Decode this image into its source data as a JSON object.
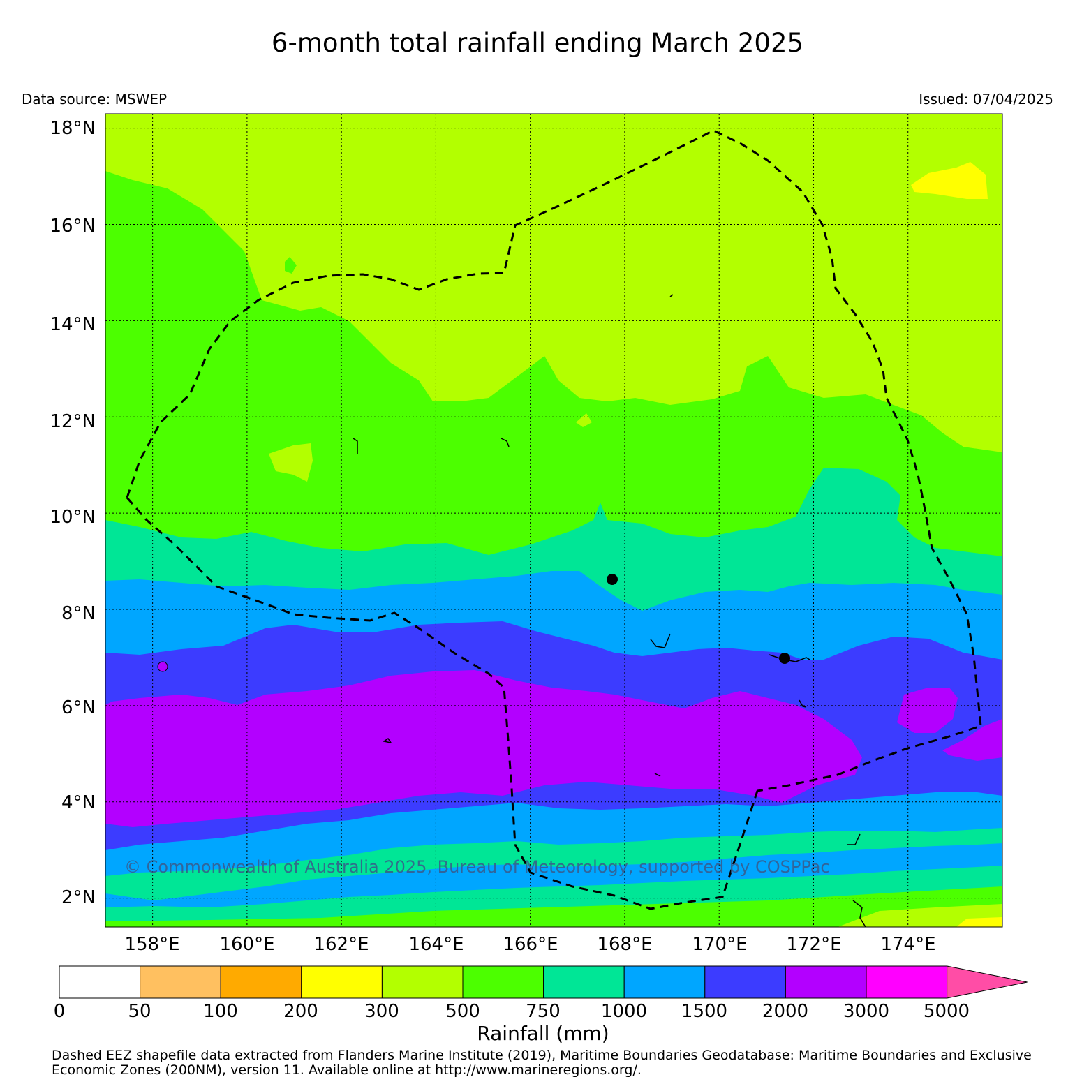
{
  "title": "6-month total rainfall ending March 2025",
  "data_source": "Data source: MSWEP",
  "issued": "Issued: 07/04/2025",
  "copyright": "© Commonwealth of Australia 2025, Bureau of Meteorology, supported by COSPPac",
  "footer": "Dashed EEZ shapefile data extracted from Flanders Marine Institute (2019), Maritime Boundaries Geodatabase: Maritime Boundaries and Exclusive Economic Zones (200NM), version 11. Available online at http://www.marineregions.org/.",
  "map": {
    "lat_ticks": [
      "18°N",
      "16°N",
      "14°N",
      "12°N",
      "10°N",
      "8°N",
      "6°N",
      "4°N",
      "2°N"
    ],
    "lon_ticks": [
      "158°E",
      "160°E",
      "162°E",
      "164°E",
      "166°E",
      "168°E",
      "170°E",
      "172°E",
      "174°E"
    ],
    "lat_range": [
      1.4,
      18.3
    ],
    "lon_range": [
      157.0,
      176.0
    ],
    "gridlines": true,
    "boundary_style": "dashed"
  },
  "colorbar": {
    "title": "Rainfall (mm)",
    "labels": [
      "0",
      "50",
      "100",
      "200",
      "300",
      "500",
      "750",
      "1000",
      "1500",
      "2000",
      "3000",
      "5000"
    ],
    "colors": [
      "#ffffff",
      "#ffc060",
      "#ffaa00",
      "#ffff00",
      "#b3ff00",
      "#4cff00",
      "#00e696",
      "#00a6ff",
      "#3c3cff",
      "#b300ff",
      "#ff00ff",
      "#ff4da6"
    ]
  }
}
